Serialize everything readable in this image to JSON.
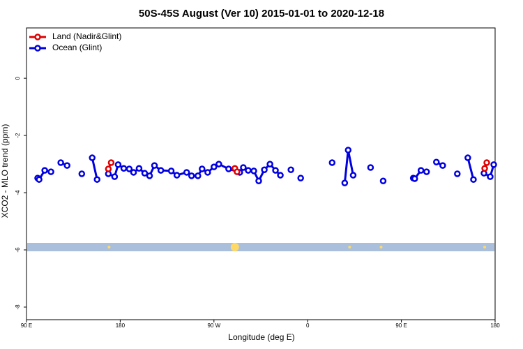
{
  "chart_data": {
    "type": "line",
    "title": "50S-45S August (Ver 10)   2015-01-01 to 2020-12-18",
    "x_label": "Longitude (deg E)",
    "y_label": "XCO2 - MLO trend (ppm)",
    "xlim": [
      90,
      540
    ],
    "ylim": [
      -8.44,
      1.76
    ],
    "xticks": [
      {
        "value": 90,
        "label": "90 E"
      },
      180,
      {
        "value": 270,
        "label": "90 W"
      },
      {
        "value": 360,
        "label": "0"
      },
      {
        "value": 450,
        "label": "90 E"
      },
      180
    ],
    "xtick_values": [
      90,
      180,
      270,
      360,
      450,
      540
    ],
    "yticks": [
      0,
      -2,
      -4,
      -6,
      -8
    ],
    "legend": "top-left",
    "band_color": "#a9bfdc",
    "band_markers": {
      "color": "#ffd966",
      "x": [
        169.3,
        290.1,
        400.3,
        430.5,
        530
      ]
    },
    "series": [
      {
        "name": "Land (Nadir&Glint)",
        "color": "#e00000",
        "x": [
          168.6,
          171.3,
          null,
          290.1,
          292.2,
          null,
          530,
          532
        ],
        "values": [
          -3.17,
          -2.95,
          null,
          -3.15,
          -3.27,
          null,
          -3.15,
          -2.95
        ]
      },
      {
        "name": "Ocean (Glint)",
        "color": "#0000e0",
        "x": [
          100.7,
          102.1,
          107.5,
          113.5,
          null,
          122.9,
          129,
          null,
          143.1,
          null,
          153.1,
          157.8,
          null,
          168.6,
          174.6,
          178,
          183.4,
          188.7,
          192.8,
          198.1,
          203.5,
          208.2,
          212.9,
          219,
          229,
          234.4,
          243.8,
          248.5,
          254.6,
          258.6,
          264,
          270,
          274.7,
          284.1,
          294.8,
          298.2,
          302.9,
          308.3,
          313,
          318.4,
          323.8,
          329.1,
          333.8,
          null,
          343.9,
          null,
          353.3,
          null,
          383.5,
          null,
          395.6,
          398.9,
          403.7,
          null,
          420.4,
          null,
          432.5,
          null,
          461.4,
          462.8,
          468.8,
          474.2,
          null,
          483.6,
          489.7,
          null,
          503.7,
          null,
          513.8,
          519.2,
          null,
          529.3,
          535.3,
          538.7
        ],
        "values": [
          -3.49,
          -3.54,
          -3.22,
          -3.27,
          null,
          -2.95,
          -3.05,
          null,
          -3.34,
          null,
          -2.78,
          -3.54,
          null,
          -3.34,
          -3.44,
          -3.02,
          -3.15,
          -3.17,
          -3.29,
          -3.15,
          -3.32,
          -3.41,
          -3.05,
          -3.22,
          -3.24,
          -3.39,
          -3.29,
          -3.41,
          -3.41,
          -3.17,
          -3.29,
          -3.1,
          -3.0,
          -3.17,
          -3.29,
          -3.12,
          -3.22,
          -3.24,
          -3.59,
          -3.2,
          -3.0,
          -3.22,
          -3.39,
          null,
          -3.2,
          null,
          -3.49,
          null,
          -2.95,
          null,
          -3.66,
          -2.51,
          -3.39,
          null,
          -3.12,
          null,
          -3.59,
          null,
          -3.49,
          -3.51,
          -3.22,
          -3.27,
          null,
          -2.93,
          -3.05,
          null,
          -3.34,
          null,
          -2.78,
          -3.54,
          null,
          -3.32,
          -3.44,
          -3.02
        ]
      }
    ]
  }
}
